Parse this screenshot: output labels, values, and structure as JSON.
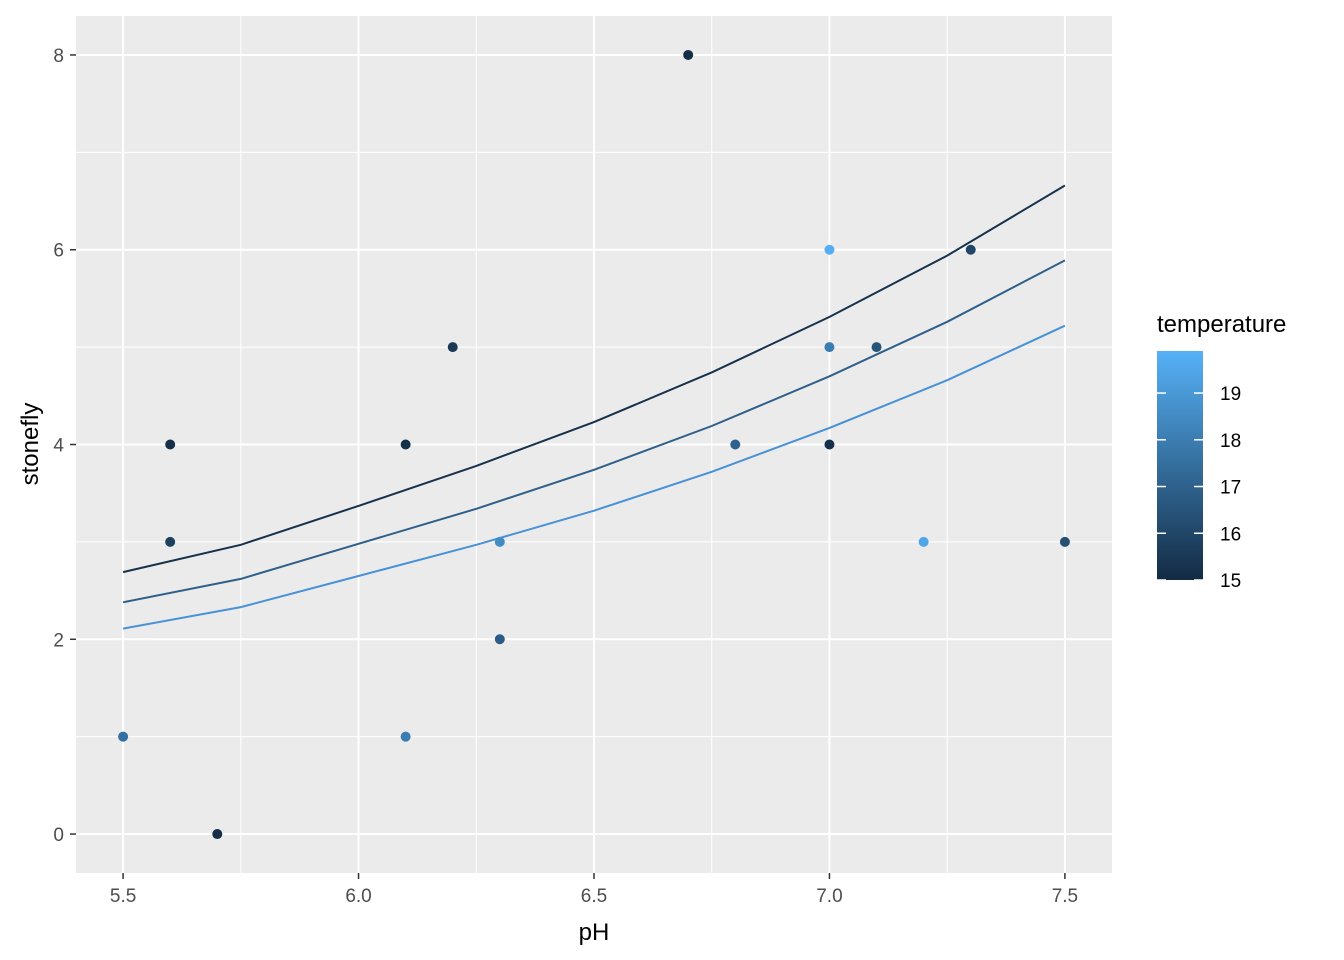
{
  "chart_data": {
    "type": "scatter",
    "xlabel": "pH",
    "ylabel": "stonefly",
    "xlim": [
      5.4,
      7.6
    ],
    "ylim": [
      -0.4,
      8.4
    ],
    "x_ticks": [
      5.5,
      6.0,
      6.5,
      7.0,
      7.5
    ],
    "x_tick_labels": [
      "5.5",
      "6.0",
      "6.5",
      "7.0",
      "7.5"
    ],
    "y_ticks": [
      0,
      2,
      4,
      6,
      8
    ],
    "y_tick_labels": [
      "0",
      "2",
      "4",
      "6",
      "8"
    ],
    "grid": true,
    "color_scale": {
      "title": "temperature",
      "min": 15,
      "max": 19.9,
      "low_color": "#132B43",
      "high_color": "#56B1F7",
      "ticks": [
        15,
        16,
        17,
        18,
        19
      ],
      "tick_labels": [
        "15",
        "16",
        "17",
        "18",
        "19"
      ],
      "legend_position": "right"
    },
    "points": [
      {
        "x": 5.5,
        "y": 1,
        "temperature": 17.5
      },
      {
        "x": 5.6,
        "y": 4,
        "temperature": 15.2
      },
      {
        "x": 5.6,
        "y": 3,
        "temperature": 15.8
      },
      {
        "x": 5.7,
        "y": 0,
        "temperature": 15.1
      },
      {
        "x": 6.1,
        "y": 4,
        "temperature": 15.2
      },
      {
        "x": 6.1,
        "y": 1,
        "temperature": 18.0
      },
      {
        "x": 6.2,
        "y": 5,
        "temperature": 15.5
      },
      {
        "x": 6.3,
        "y": 3,
        "temperature": 18.5
      },
      {
        "x": 6.3,
        "y": 2,
        "temperature": 16.8
      },
      {
        "x": 6.7,
        "y": 8,
        "temperature": 15.1
      },
      {
        "x": 6.8,
        "y": 4,
        "temperature": 17.0
      },
      {
        "x": 7.0,
        "y": 6,
        "temperature": 19.8
      },
      {
        "x": 7.0,
        "y": 5,
        "temperature": 18.0
      },
      {
        "x": 7.0,
        "y": 4,
        "temperature": 15.2
      },
      {
        "x": 7.1,
        "y": 5,
        "temperature": 16.5
      },
      {
        "x": 7.2,
        "y": 3,
        "temperature": 19.5
      },
      {
        "x": 7.3,
        "y": 6,
        "temperature": 16.0
      },
      {
        "x": 7.5,
        "y": 3,
        "temperature": 16.3
      }
    ],
    "lines": [
      {
        "temperature": 15.2,
        "color": "#17324C",
        "x": [
          5.5,
          5.75,
          6.0,
          6.25,
          6.5,
          6.75,
          7.0,
          7.25,
          7.5
        ],
        "y": [
          2.69,
          2.97,
          3.37,
          3.78,
          4.23,
          4.74,
          5.31,
          5.94,
          6.66
        ]
      },
      {
        "x": [
          5.5,
          5.75,
          6.0,
          6.25,
          6.5,
          6.75,
          7.0,
          7.25,
          7.5
        ],
        "y": [
          2.38,
          2.62,
          2.98,
          3.34,
          3.74,
          4.19,
          4.7,
          5.26,
          5.89
        ],
        "temperature": 17.0,
        "color": "#2F5F8A"
      },
      {
        "x": [
          5.5,
          5.75,
          6.0,
          6.25,
          6.5,
          6.75,
          7.0,
          7.25,
          7.5
        ],
        "y": [
          2.11,
          2.33,
          2.65,
          2.97,
          3.32,
          3.72,
          4.17,
          4.66,
          5.22
        ],
        "temperature": 18.8,
        "color": "#4891D6"
      }
    ]
  }
}
